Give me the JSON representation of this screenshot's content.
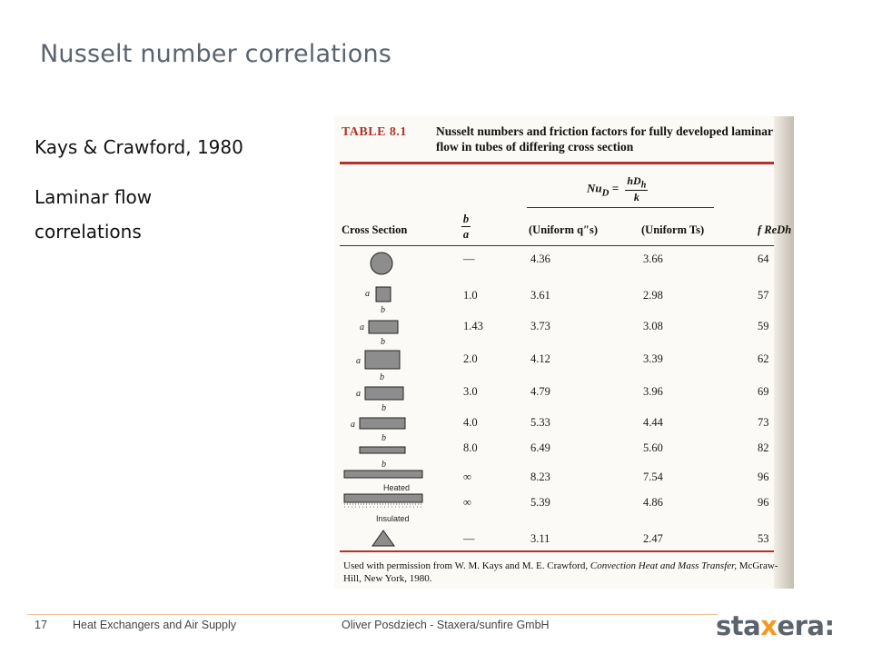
{
  "slide": {
    "title": "Nusselt number correlations",
    "left_lines": [
      "Kays & Crawford, 1980",
      "Laminar flow",
      "correlations"
    ]
  },
  "table": {
    "number": "TABLE 8.1",
    "caption": "Nusselt numbers and friction factors for fully developed laminar flow in tubes of differing cross section",
    "nu_lhs": "Nu",
    "nu_sub": "D",
    "nu_eq": "=",
    "nu_num": "hD",
    "nu_num_sub": "h",
    "nu_den": "k",
    "headers": {
      "cross_section": "Cross Section",
      "ratio_num": "b",
      "ratio_den": "a",
      "uniform_q": "(Uniform q″s)",
      "uniform_t": "(Uniform Ts)",
      "f_re": "f ReDh"
    },
    "rows": [
      {
        "shape": "circle",
        "ratio": "—",
        "nu_q": "4.36",
        "nu_t": "3.66",
        "f_re": "64"
      },
      {
        "shape": "rect-1.0",
        "ratio": "1.0",
        "nu_q": "3.61",
        "nu_t": "2.98",
        "f_re": "57"
      },
      {
        "shape": "rect-1.43",
        "ratio": "1.43",
        "nu_q": "3.73",
        "nu_t": "3.08",
        "f_re": "59"
      },
      {
        "shape": "rect-2.0",
        "ratio": "2.0",
        "nu_q": "4.12",
        "nu_t": "3.39",
        "f_re": "62"
      },
      {
        "shape": "rect-3.0",
        "ratio": "3.0",
        "nu_q": "4.79",
        "nu_t": "3.96",
        "f_re": "69"
      },
      {
        "shape": "rect-4.0",
        "ratio": "4.0",
        "nu_q": "5.33",
        "nu_t": "4.44",
        "f_re": "73"
      },
      {
        "shape": "rect-8.0",
        "ratio": "8.0",
        "nu_q": "6.49",
        "nu_t": "5.60",
        "f_re": "82"
      },
      {
        "shape": "plates",
        "ratio": "∞",
        "nu_q": "8.23",
        "nu_t": "7.54",
        "f_re": "96"
      },
      {
        "shape": "plates-heated-insulated",
        "ratio": "∞",
        "nu_q": "5.39",
        "nu_t": "4.86",
        "f_re": "96"
      },
      {
        "shape": "triangle",
        "ratio": "—",
        "nu_q": "3.11",
        "nu_t": "2.47",
        "f_re": "53"
      }
    ],
    "shape_label_a": "a",
    "shape_label_b": "b",
    "heated_label": "Heated",
    "insulated_label": "Insulated",
    "footnote_a": "Used with permission from W. M. Kays and M. E. Crawford,",
    "footnote_title": "Convection Heat and Mass Transfer,",
    "footnote_b": "McGraw-Hill, New York, 1980."
  },
  "footer": {
    "page": "17",
    "section": "Heat Exchangers and Air Supply",
    "author": "Oliver Posdziech - Staxera/sunfire GmbH",
    "logo_a": "sta",
    "logo_x": "x",
    "logo_b": "era:"
  },
  "colors": {
    "accent_red": "#b3322b",
    "logo_orange": "#f39a25",
    "title_gray": "#5a6470"
  }
}
